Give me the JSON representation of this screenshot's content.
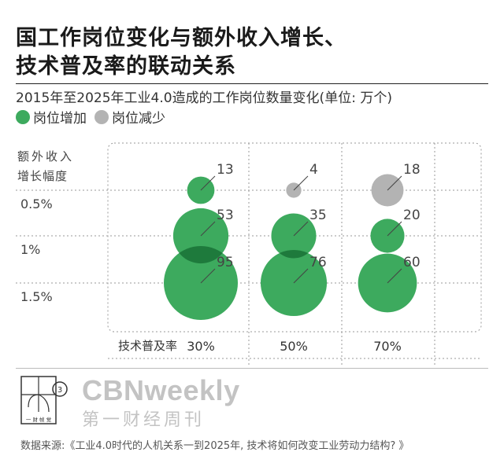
{
  "title_line1": "国工作岗位变化与额外收入增长、",
  "title_line2": "技术普及率的联动关系",
  "subtitle": "2015年至2025年工业4.0造成的工作岗位数量变化(单位: 万个)",
  "legend": [
    {
      "label": "岗位增加",
      "color": "#3daa5e"
    },
    {
      "label": "岗位减少",
      "color": "#b3b3b3"
    }
  ],
  "chart_data": {
    "type": "scatter",
    "subtype": "bubble",
    "xlabel": "技术普及率",
    "ylabel": "额外收入增长幅度",
    "x_categories": [
      "30%",
      "50%",
      "70%"
    ],
    "y_categories": [
      "0.5%",
      "1%",
      "1.5%"
    ],
    "grid": true,
    "points": [
      {
        "x": "30%",
        "y": "0.5%",
        "value": 13,
        "type": "increase"
      },
      {
        "x": "30%",
        "y": "1%",
        "value": 53,
        "type": "increase"
      },
      {
        "x": "30%",
        "y": "1.5%",
        "value": 95,
        "type": "increase"
      },
      {
        "x": "50%",
        "y": "0.5%",
        "value": 4,
        "type": "decrease"
      },
      {
        "x": "50%",
        "y": "1%",
        "value": 35,
        "type": "increase"
      },
      {
        "x": "50%",
        "y": "1.5%",
        "value": 76,
        "type": "increase"
      },
      {
        "x": "70%",
        "y": "0.5%",
        "value": 18,
        "type": "decrease"
      },
      {
        "x": "70%",
        "y": "1%",
        "value": 20,
        "type": "increase"
      },
      {
        "x": "70%",
        "y": "1.5%",
        "value": 60,
        "type": "increase"
      }
    ],
    "colors": {
      "increase": "#3daa5e",
      "decrease": "#b3b3b3",
      "overlap": "#1e7a3c"
    }
  },
  "brand_en": "CBNweekly",
  "brand_cn": "第一财经周刊",
  "logo_text": "一 财 帧 觉",
  "source": "数据来源:《工业4.0时代的人机关系一到2025年, 技术将如何改变工业劳动力结构? 》"
}
